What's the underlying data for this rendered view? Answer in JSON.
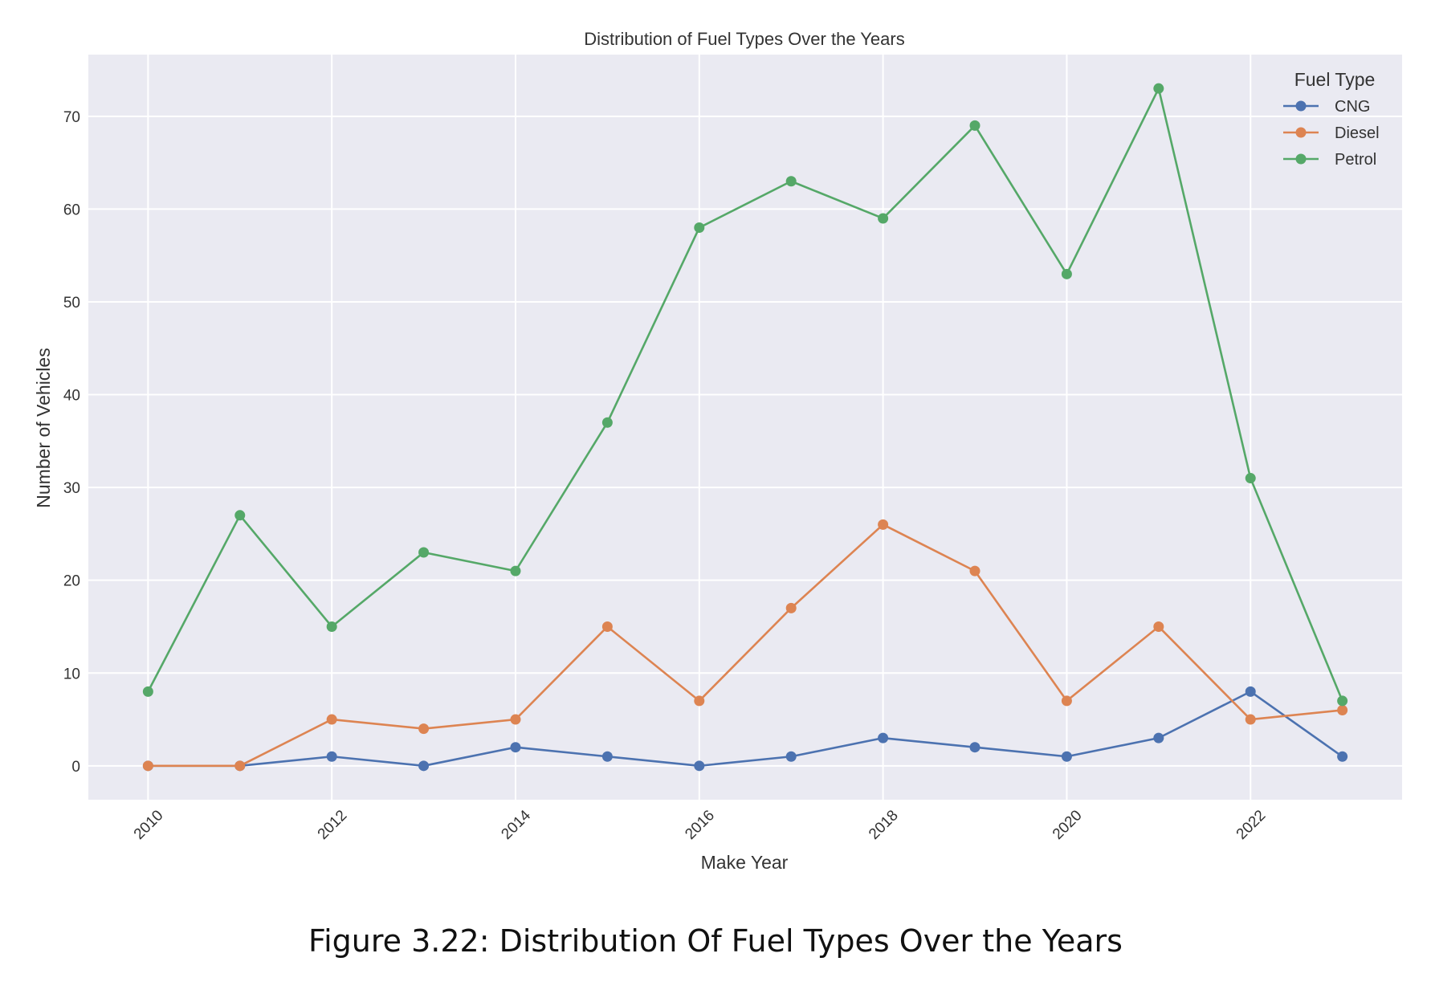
{
  "figure_caption": "Figure 3.22: Distribution Of Fuel Types Over the Years",
  "chart_data": {
    "type": "line",
    "title": "Distribution of Fuel Types Over the Years",
    "xlabel": "Make Year",
    "ylabel": "Number of Vehicles",
    "x": [
      2010,
      2011,
      2012,
      2013,
      2014,
      2015,
      2016,
      2017,
      2018,
      2019,
      2020,
      2021,
      2022,
      2023
    ],
    "x_ticks": [
      2010,
      2012,
      2014,
      2016,
      2018,
      2020,
      2022
    ],
    "x_tick_labels": [
      "2010",
      "2012",
      "2014",
      "2016",
      "2018",
      "2020",
      "2022"
    ],
    "y_ticks": [
      0,
      10,
      20,
      30,
      40,
      50,
      60,
      70
    ],
    "y_tick_labels": [
      "0",
      "10",
      "20",
      "30",
      "40",
      "50",
      "60",
      "70"
    ],
    "xlim": [
      2009.35,
      2023.65
    ],
    "ylim": [
      -3.65,
      76.65
    ],
    "grid": true,
    "background": "#eaeaf2",
    "legend": {
      "title": "Fuel Type",
      "placement": "top-right"
    },
    "series": [
      {
        "name": "CNG",
        "color": "#4c72b0",
        "values": [
          0,
          0,
          1,
          0,
          2,
          1,
          0,
          1,
          3,
          2,
          1,
          3,
          8,
          1
        ]
      },
      {
        "name": "Diesel",
        "color": "#dd8452",
        "values": [
          0,
          0,
          5,
          4,
          5,
          15,
          7,
          17,
          26,
          21,
          7,
          15,
          5,
          6
        ]
      },
      {
        "name": "Petrol",
        "color": "#55a868",
        "values": [
          8,
          27,
          15,
          23,
          21,
          37,
          58,
          63,
          59,
          69,
          53,
          73,
          31,
          7
        ]
      }
    ]
  }
}
